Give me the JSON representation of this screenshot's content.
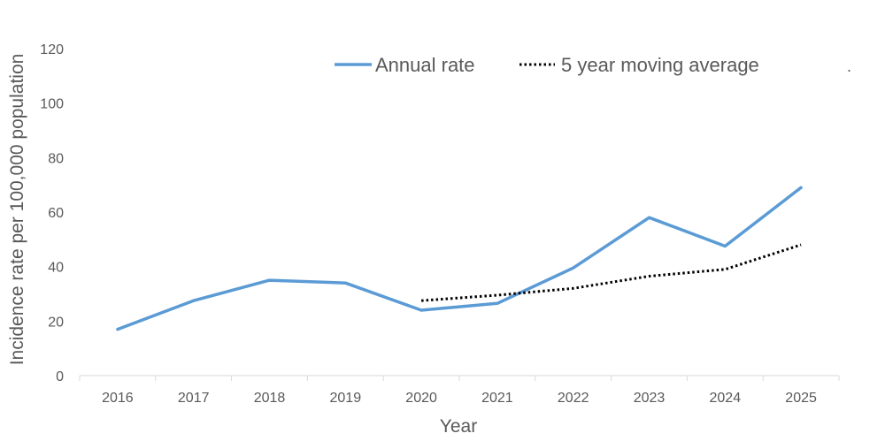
{
  "chart_data": {
    "type": "line",
    "title": "",
    "xlabel": "Year",
    "ylabel": "Incidence rate per 100,000 population",
    "categories": [
      "2016",
      "2017",
      "2018",
      "2019",
      "2020",
      "2021",
      "2022",
      "2023",
      "2024",
      "2025"
    ],
    "yticks": [
      "0",
      "20",
      "40",
      "60",
      "80",
      "100",
      "120"
    ],
    "ylim": [
      0,
      120
    ],
    "grid": false,
    "legend_position": "top",
    "series": [
      {
        "name": "Annual rate",
        "style": "solid",
        "color": "#5b9bd5",
        "values": [
          17,
          27.5,
          35,
          34,
          24,
          26.5,
          39.5,
          58,
          47.5,
          69
        ]
      },
      {
        "name": "5 year moving average",
        "style": "dotted",
        "color": "#000000",
        "values": [
          null,
          null,
          null,
          null,
          27.5,
          29.5,
          32,
          36.5,
          39,
          48
        ]
      }
    ],
    "stray_mark": "."
  }
}
